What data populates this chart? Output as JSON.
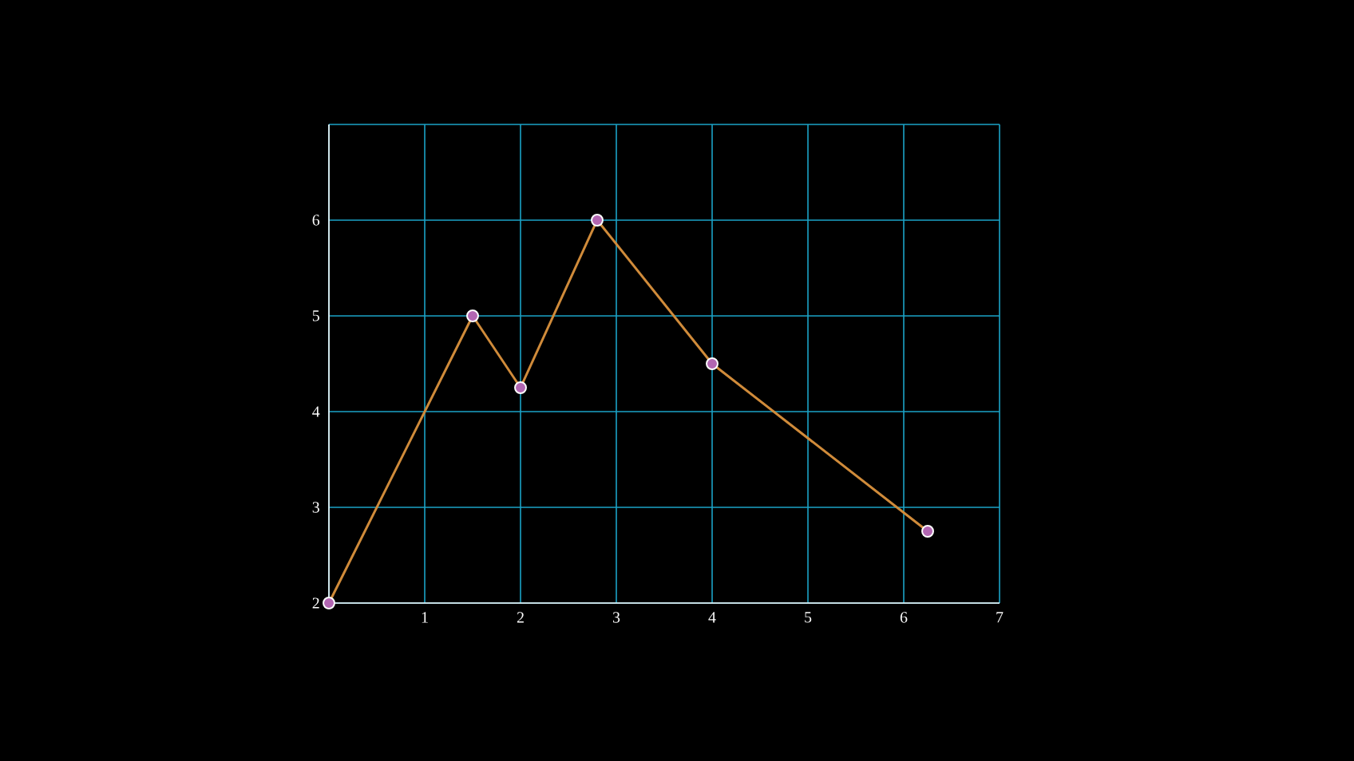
{
  "chart_data": {
    "type": "line",
    "x": [
      0,
      1.5,
      2,
      2.8,
      4,
      6.25
    ],
    "series": [
      {
        "color": "#d08b3a",
        "values": [
          2,
          5,
          4.25,
          6,
          4.5,
          2.75
        ]
      }
    ],
    "xlim": [
      0,
      7
    ],
    "ylim": [
      2,
      7
    ],
    "xticks": [
      {
        "value": 0,
        "label": null
      },
      1,
      2,
      3,
      4,
      5,
      6,
      7
    ],
    "yticks": [
      2,
      3,
      4,
      5,
      6,
      {
        "value": 7,
        "label": null
      }
    ],
    "grid": true,
    "marker": "circle",
    "line_style": "solid"
  }
}
